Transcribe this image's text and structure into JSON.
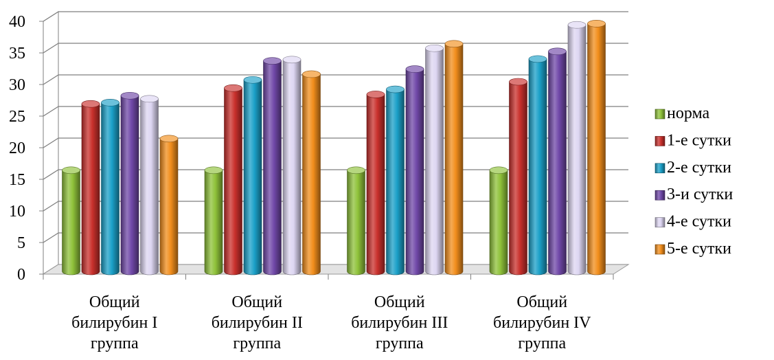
{
  "chart_data": {
    "type": "bar",
    "title": "",
    "xlabel": "",
    "ylabel": "",
    "ylim": [
      0,
      40
    ],
    "yticks": [
      0,
      5,
      10,
      15,
      20,
      25,
      30,
      35,
      40
    ],
    "grid": true,
    "legend_position": "right",
    "style": "3d-cylinder",
    "categories": [
      [
        "Общий",
        "билирубин I",
        "группа"
      ],
      [
        "Общий",
        "билирубин II",
        "группа"
      ],
      [
        "Общий",
        "билирубин III",
        "группа"
      ],
      [
        "Общий",
        "билирубин IV",
        "группа"
      ]
    ],
    "series": [
      {
        "name": "норма",
        "color": "#8fc23a",
        "values": [
          16,
          16,
          16,
          16
        ]
      },
      {
        "name": "1-е сутки",
        "color": "#c9302c",
        "values": [
          26.5,
          29,
          28,
          30
        ]
      },
      {
        "name": "2-е сутки",
        "color": "#1ba0c8",
        "values": [
          26.7,
          30.3,
          28.8,
          33.6
        ]
      },
      {
        "name": "3-и сутки",
        "color": "#7048a8",
        "values": [
          27.8,
          33.3,
          32,
          34.8
        ]
      },
      {
        "name": "4-е сутки",
        "color": "#ddd6f2",
        "values": [
          27.3,
          33.5,
          35.3,
          39
        ]
      },
      {
        "name": "5-е сутки",
        "color": "#f28e1c",
        "values": [
          21,
          31.2,
          36,
          39.2
        ]
      }
    ]
  }
}
